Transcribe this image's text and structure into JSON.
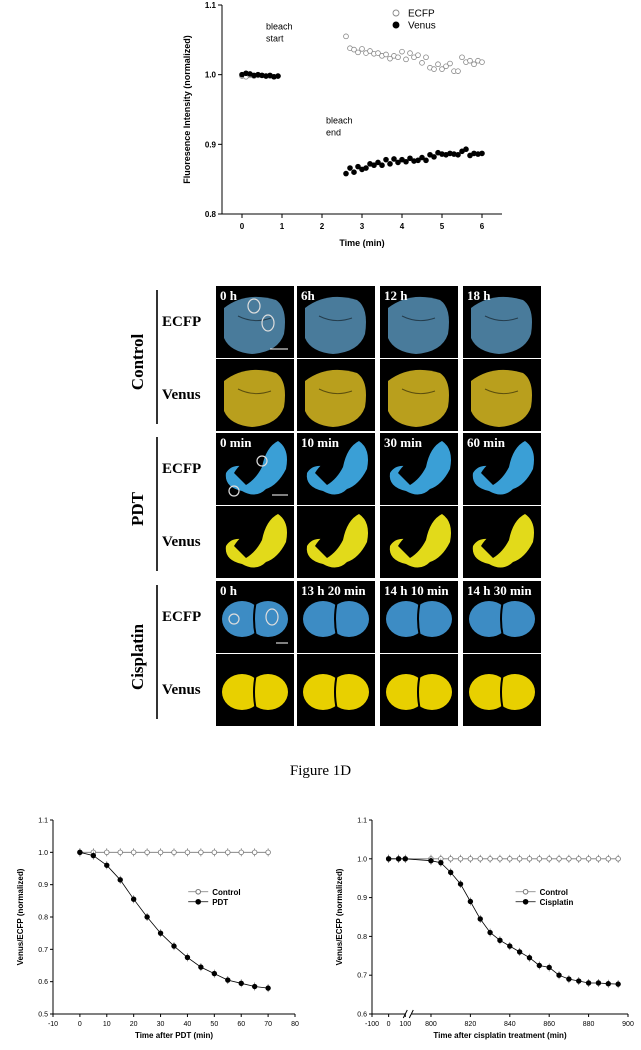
{
  "figure_caption": "Figure 1D",
  "image_grid": {
    "groups": [
      {
        "name": "Control",
        "rows": [
          "ECFP",
          "Venus"
        ],
        "timepoints": [
          "0 h",
          "6h",
          "12 h",
          "18 h"
        ],
        "ecfp_color": "#4f86a8",
        "venus_color": "#c9ad20"
      },
      {
        "name": "PDT",
        "rows": [
          "ECFP",
          "Venus"
        ],
        "timepoints": [
          "0 min",
          "10 min",
          "30 min",
          "60 min"
        ],
        "ecfp_color": "#3a9fd6",
        "venus_color": "#e2da1a"
      },
      {
        "name": "Cisplatin",
        "rows": [
          "ECFP",
          "Venus"
        ],
        "timepoints": [
          "0 h",
          "13 h 20 min",
          "14 h 10 min",
          "14 h 30 min"
        ],
        "ecfp_color": "#3d8cc4",
        "venus_color": "#e8d000"
      }
    ]
  },
  "chart_data": [
    {
      "type": "scatter",
      "title": "",
      "xlabel": "Time (min)",
      "ylabel": "Fluoresence Intensity (normalized)",
      "xlim": [
        -0.5,
        6.5
      ],
      "ylim": [
        0.8,
        1.1
      ],
      "xticks": [
        "0",
        "1",
        "2",
        "3",
        "4",
        "5",
        "6"
      ],
      "yticks": [
        "0.8",
        "0.9",
        "1.0",
        "1.1"
      ],
      "legend": "top-right",
      "annotations": [
        {
          "text": [
            "bleach",
            "start"
          ],
          "x": 0.6,
          "y": 1.065
        },
        {
          "text": [
            "bleach",
            "end"
          ],
          "x": 2.1,
          "y": 0.93
        }
      ],
      "series": [
        {
          "name": "ECFP",
          "marker": "open-circle",
          "x": [
            0.0,
            0.1,
            0.2,
            0.3,
            0.4,
            0.5,
            0.6,
            0.7,
            0.8,
            0.9,
            2.6,
            2.7,
            2.8,
            2.9,
            3.0,
            3.1,
            3.2,
            3.3,
            3.4,
            3.5,
            3.6,
            3.7,
            3.8,
            3.9,
            4.0,
            4.1,
            4.2,
            4.3,
            4.4,
            4.5,
            4.6,
            4.7,
            4.8,
            4.9,
            5.0,
            5.1,
            5.2,
            5.3,
            5.4,
            5.5,
            5.6,
            5.7,
            5.8,
            5.9,
            6.0
          ],
          "y": [
            0.998,
            0.997,
            0.999,
            0.998,
            0.999,
            0.999,
            0.998,
            0.998,
            0.997,
            0.998,
            1.055,
            1.038,
            1.036,
            1.032,
            1.037,
            1.031,
            1.034,
            1.03,
            1.031,
            1.027,
            1.029,
            1.023,
            1.027,
            1.025,
            1.033,
            1.022,
            1.031,
            1.025,
            1.028,
            1.017,
            1.025,
            1.01,
            1.008,
            1.015,
            1.008,
            1.012,
            1.016,
            1.005,
            1.005,
            1.025,
            1.018,
            1.02,
            1.015,
            1.02,
            1.018
          ]
        },
        {
          "name": "Venus",
          "marker": "filled-circle",
          "x": [
            0.0,
            0.1,
            0.2,
            0.3,
            0.4,
            0.5,
            0.6,
            0.7,
            0.8,
            0.9,
            2.6,
            2.7,
            2.8,
            2.9,
            3.0,
            3.1,
            3.2,
            3.3,
            3.4,
            3.5,
            3.6,
            3.7,
            3.8,
            3.9,
            4.0,
            4.1,
            4.2,
            4.3,
            4.4,
            4.5,
            4.6,
            4.7,
            4.8,
            4.9,
            5.0,
            5.1,
            5.2,
            5.3,
            5.4,
            5.5,
            5.6,
            5.7,
            5.8,
            5.9,
            6.0
          ],
          "y": [
            1.0,
            1.002,
            1.001,
            0.999,
            1.0,
            0.999,
            0.998,
            0.999,
            0.997,
            0.998,
            0.858,
            0.866,
            0.86,
            0.868,
            0.864,
            0.866,
            0.872,
            0.87,
            0.874,
            0.87,
            0.878,
            0.872,
            0.879,
            0.874,
            0.878,
            0.875,
            0.88,
            0.876,
            0.877,
            0.881,
            0.877,
            0.885,
            0.882,
            0.888,
            0.886,
            0.885,
            0.887,
            0.886,
            0.885,
            0.89,
            0.893,
            0.884,
            0.887,
            0.886,
            0.887
          ]
        }
      ]
    },
    {
      "type": "line",
      "title": "",
      "xlabel": "Time after PDT (min)",
      "ylabel": "Venus/ECFP (normalized)",
      "xlim": [
        -10,
        80
      ],
      "ylim": [
        0.5,
        1.1
      ],
      "xticks": [
        "-10",
        "0",
        "10",
        "20",
        "30",
        "40",
        "50",
        "60",
        "70",
        "80"
      ],
      "yticks": [
        "0.5",
        "0.6",
        "0.7",
        "0.8",
        "0.9",
        "1.0",
        "1.1"
      ],
      "legend": "center-right",
      "series": [
        {
          "name": "Control",
          "marker": "open-circle",
          "x": [
            0,
            5,
            10,
            15,
            20,
            25,
            30,
            35,
            40,
            45,
            50,
            55,
            60,
            65,
            70
          ],
          "y": [
            1.0,
            1.0,
            1.0,
            1.0,
            1.0,
            1.0,
            1.0,
            1.0,
            1.0,
            1.0,
            1.0,
            1.0,
            1.0,
            1.0,
            1.0
          ]
        },
        {
          "name": "PDT",
          "marker": "filled-circle",
          "x": [
            0,
            5,
            10,
            15,
            20,
            25,
            30,
            35,
            40,
            45,
            50,
            55,
            60,
            65,
            70
          ],
          "y": [
            1.0,
            0.99,
            0.96,
            0.915,
            0.855,
            0.8,
            0.75,
            0.71,
            0.675,
            0.645,
            0.625,
            0.605,
            0.595,
            0.585,
            0.58
          ]
        }
      ]
    },
    {
      "type": "line",
      "title": "",
      "xlabel": "Time after cisplatin treatment (min)",
      "ylabel": "Venus/ECFP (normalized)",
      "xlim": [
        -100,
        900
      ],
      "ylim": [
        0.6,
        1.1
      ],
      "axis_break": [
        100,
        790
      ],
      "xticks": [
        "-100",
        "0",
        "100",
        "800",
        "820",
        "840",
        "860",
        "880",
        "900"
      ],
      "yticks": [
        "0.6",
        "0.7",
        "0.8",
        "0.9",
        "1.0",
        "1.1"
      ],
      "legend": "center-right",
      "series": [
        {
          "name": "Control",
          "marker": "open-circle",
          "x": [
            0,
            60,
            100,
            800,
            805,
            810,
            815,
            820,
            825,
            830,
            835,
            840,
            845,
            850,
            855,
            860,
            865,
            870,
            875,
            880,
            885,
            890,
            895
          ],
          "y": [
            1.0,
            1.0,
            1.0,
            1.0,
            1.0,
            1.0,
            1.0,
            1.0,
            1.0,
            1.0,
            1.0,
            1.0,
            1.0,
            1.0,
            1.0,
            1.0,
            1.0,
            1.0,
            1.0,
            1.0,
            1.0,
            1.0,
            1.0
          ]
        },
        {
          "name": "Cisplatin",
          "marker": "filled-circle",
          "x": [
            0,
            60,
            100,
            800,
            805,
            810,
            815,
            820,
            825,
            830,
            835,
            840,
            845,
            850,
            855,
            860,
            865,
            870,
            875,
            880,
            885,
            890,
            895
          ],
          "y": [
            1.0,
            1.0,
            1.0,
            0.995,
            0.99,
            0.965,
            0.935,
            0.89,
            0.845,
            0.81,
            0.79,
            0.775,
            0.76,
            0.745,
            0.725,
            0.72,
            0.7,
            0.69,
            0.685,
            0.68,
            0.68,
            0.678,
            0.677
          ]
        }
      ]
    }
  ]
}
